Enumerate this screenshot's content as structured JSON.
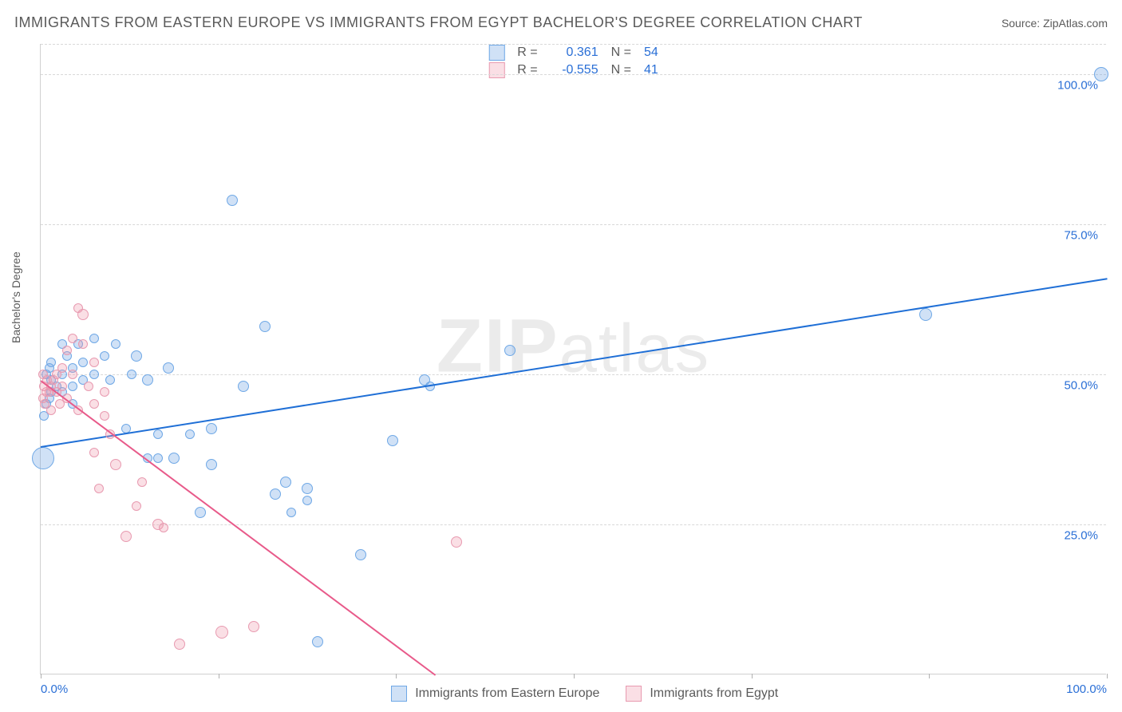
{
  "title": "IMMIGRANTS FROM EASTERN EUROPE VS IMMIGRANTS FROM EGYPT BACHELOR'S DEGREE CORRELATION CHART",
  "source": "Source: ZipAtlas.com",
  "watermark": "ZIPatlas",
  "y_axis_title": "Bachelor's Degree",
  "chart": {
    "type": "scatter",
    "xlim": [
      0,
      100
    ],
    "ylim": [
      0,
      105
    ],
    "background_color": "#ffffff",
    "grid_color": "#d8d8d8",
    "axis_color": "#d0d0d0",
    "y_ticks": [
      {
        "value": 25,
        "label": "25.0%"
      },
      {
        "value": 50,
        "label": "50.0%"
      },
      {
        "value": 75,
        "label": "75.0%"
      },
      {
        "value": 100,
        "label": "100.0%"
      }
    ],
    "x_ticks": [
      0,
      16.67,
      33.33,
      50,
      66.67,
      83.33,
      100
    ],
    "x_labels": [
      {
        "value": 0,
        "label": "0.0%"
      },
      {
        "value": 100,
        "label": "100.0%"
      }
    ],
    "tick_label_color": "#2a6fd6",
    "series": [
      {
        "id": "eastern_europe",
        "name": "Immigrants from Eastern Europe",
        "color_fill": "rgba(120,170,230,0.35)",
        "color_stroke": "#6fa8e6",
        "trend_color": "#1f6fd6",
        "R": "0.361",
        "N": "54",
        "trend": {
          "x1": 0,
          "y1": 38,
          "x2": 100,
          "y2": 66
        },
        "marker_radius": 7,
        "points": [
          {
            "x": 99.5,
            "y": 100,
            "r": 9
          },
          {
            "x": 83,
            "y": 60,
            "r": 8
          },
          {
            "x": 18,
            "y": 79,
            "r": 7
          },
          {
            "x": 44,
            "y": 54,
            "r": 7
          },
          {
            "x": 36,
            "y": 49,
            "r": 7
          },
          {
            "x": 36.5,
            "y": 48,
            "r": 6
          },
          {
            "x": 33,
            "y": 39,
            "r": 7
          },
          {
            "x": 30,
            "y": 20,
            "r": 7
          },
          {
            "x": 26,
            "y": 5.5,
            "r": 7
          },
          {
            "x": 25,
            "y": 31,
            "r": 7
          },
          {
            "x": 25,
            "y": 29,
            "r": 6
          },
          {
            "x": 23,
            "y": 32,
            "r": 7
          },
          {
            "x": 22,
            "y": 30,
            "r": 7
          },
          {
            "x": 23.5,
            "y": 27,
            "r": 6
          },
          {
            "x": 21,
            "y": 58,
            "r": 7
          },
          {
            "x": 19,
            "y": 48,
            "r": 7
          },
          {
            "x": 16,
            "y": 41,
            "r": 7
          },
          {
            "x": 16,
            "y": 35,
            "r": 7
          },
          {
            "x": 15,
            "y": 27,
            "r": 7
          },
          {
            "x": 14,
            "y": 40,
            "r": 6
          },
          {
            "x": 12.5,
            "y": 36,
            "r": 7
          },
          {
            "x": 12,
            "y": 51,
            "r": 7
          },
          {
            "x": 11,
            "y": 36,
            "r": 6
          },
          {
            "x": 11,
            "y": 40,
            "r": 6
          },
          {
            "x": 10,
            "y": 49,
            "r": 7
          },
          {
            "x": 10,
            "y": 36,
            "r": 6
          },
          {
            "x": 9,
            "y": 53,
            "r": 7
          },
          {
            "x": 8.5,
            "y": 50,
            "r": 6
          },
          {
            "x": 8,
            "y": 41,
            "r": 6
          },
          {
            "x": 7,
            "y": 55,
            "r": 6
          },
          {
            "x": 6.5,
            "y": 49,
            "r": 6
          },
          {
            "x": 6,
            "y": 53,
            "r": 6
          },
          {
            "x": 5,
            "y": 50,
            "r": 6
          },
          {
            "x": 5,
            "y": 56,
            "r": 6
          },
          {
            "x": 4,
            "y": 52,
            "r": 6
          },
          {
            "x": 4,
            "y": 49,
            "r": 6
          },
          {
            "x": 3.5,
            "y": 55,
            "r": 6
          },
          {
            "x": 3,
            "y": 51,
            "r": 6
          },
          {
            "x": 3,
            "y": 48,
            "r": 6
          },
          {
            "x": 2.5,
            "y": 53,
            "r": 6
          },
          {
            "x": 2,
            "y": 55,
            "r": 6
          },
          {
            "x": 2,
            "y": 50,
            "r": 6
          },
          {
            "x": 1.5,
            "y": 48,
            "r": 6
          },
          {
            "x": 1,
            "y": 52,
            "r": 6
          },
          {
            "x": 1,
            "y": 49,
            "r": 6
          },
          {
            "x": 0.8,
            "y": 46,
            "r": 6
          },
          {
            "x": 0.5,
            "y": 50,
            "r": 6
          },
          {
            "x": 0.5,
            "y": 45,
            "r": 6
          },
          {
            "x": 0.3,
            "y": 43,
            "r": 6
          },
          {
            "x": 0.2,
            "y": 36,
            "r": 14
          },
          {
            "x": 1,
            "y": 47,
            "r": 6
          },
          {
            "x": 2,
            "y": 47,
            "r": 6
          },
          {
            "x": 3,
            "y": 45,
            "r": 6
          },
          {
            "x": 0.8,
            "y": 51,
            "r": 6
          }
        ]
      },
      {
        "id": "egypt",
        "name": "Immigrants from Egypt",
        "color_fill": "rgba(240,150,170,0.30)",
        "color_stroke": "#e89ab0",
        "trend_color": "#e85a8a",
        "R": "-0.555",
        "N": "41",
        "trend": {
          "x1": 0,
          "y1": 49,
          "x2": 37,
          "y2": 0
        },
        "marker_radius": 7,
        "points": [
          {
            "x": 39,
            "y": 22,
            "r": 7
          },
          {
            "x": 20,
            "y": 8,
            "r": 7
          },
          {
            "x": 17,
            "y": 7,
            "r": 8
          },
          {
            "x": 13,
            "y": 5,
            "r": 7
          },
          {
            "x": 11,
            "y": 25,
            "r": 7
          },
          {
            "x": 11.5,
            "y": 24.5,
            "r": 6
          },
          {
            "x": 8,
            "y": 23,
            "r": 7
          },
          {
            "x": 9,
            "y": 28,
            "r": 6
          },
          {
            "x": 9.5,
            "y": 32,
            "r": 6
          },
          {
            "x": 7,
            "y": 35,
            "r": 7
          },
          {
            "x": 6.5,
            "y": 40,
            "r": 6
          },
          {
            "x": 6,
            "y": 43,
            "r": 6
          },
          {
            "x": 6,
            "y": 47,
            "r": 6
          },
          {
            "x": 5.5,
            "y": 31,
            "r": 6
          },
          {
            "x": 5,
            "y": 45,
            "r": 6
          },
          {
            "x": 5,
            "y": 52,
            "r": 6
          },
          {
            "x": 4.5,
            "y": 48,
            "r": 6
          },
          {
            "x": 4,
            "y": 55,
            "r": 6
          },
          {
            "x": 4,
            "y": 60,
            "r": 7
          },
          {
            "x": 3.5,
            "y": 61,
            "r": 6
          },
          {
            "x": 3.5,
            "y": 44,
            "r": 6
          },
          {
            "x": 3,
            "y": 50,
            "r": 6
          },
          {
            "x": 3,
            "y": 56,
            "r": 6
          },
          {
            "x": 2.5,
            "y": 54,
            "r": 6
          },
          {
            "x": 2.5,
            "y": 46,
            "r": 6
          },
          {
            "x": 2,
            "y": 48,
            "r": 6
          },
          {
            "x": 2,
            "y": 51,
            "r": 6
          },
          {
            "x": 1.8,
            "y": 45,
            "r": 6
          },
          {
            "x": 1.5,
            "y": 47,
            "r": 6
          },
          {
            "x": 1.5,
            "y": 50,
            "r": 6
          },
          {
            "x": 1.2,
            "y": 49,
            "r": 6
          },
          {
            "x": 1,
            "y": 48,
            "r": 6
          },
          {
            "x": 1,
            "y": 44,
            "r": 6
          },
          {
            "x": 0.8,
            "y": 47,
            "r": 6
          },
          {
            "x": 0.6,
            "y": 49,
            "r": 6
          },
          {
            "x": 0.5,
            "y": 47,
            "r": 6
          },
          {
            "x": 0.4,
            "y": 45,
            "r": 6
          },
          {
            "x": 0.3,
            "y": 48,
            "r": 6
          },
          {
            "x": 0.2,
            "y": 50,
            "r": 6
          },
          {
            "x": 0.2,
            "y": 46,
            "r": 6
          },
          {
            "x": 5,
            "y": 37,
            "r": 6
          }
        ]
      }
    ]
  },
  "legend_top_labels": {
    "R": "R =",
    "N": "N ="
  },
  "legend_bottom": {
    "series1": "Immigrants from Eastern Europe",
    "series2": "Immigrants from Egypt"
  }
}
